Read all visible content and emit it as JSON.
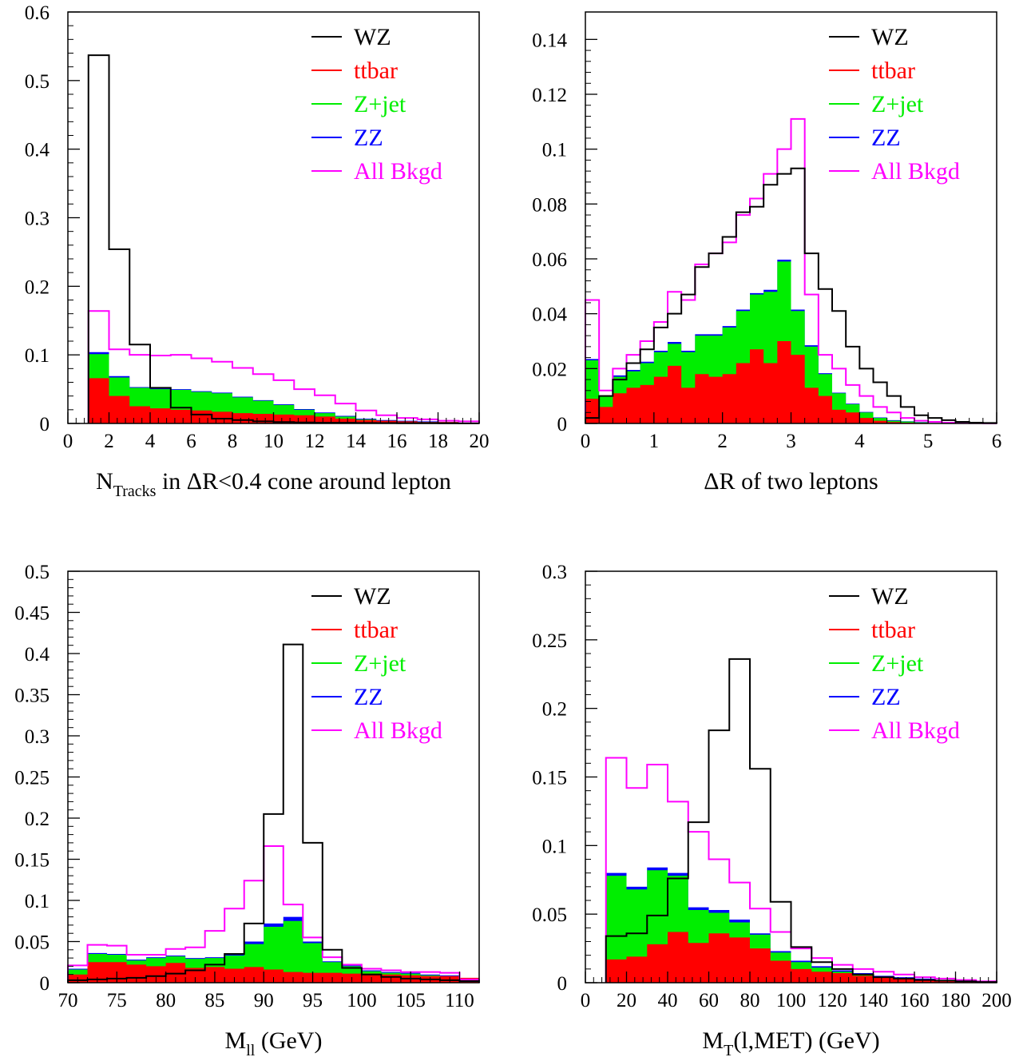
{
  "legend": [
    {
      "name": "WZ",
      "color": "#000000"
    },
    {
      "name": "ttbar",
      "color": "#ff0000"
    },
    {
      "name": "Z+jet",
      "color": "#00ee00"
    },
    {
      "name": "ZZ",
      "color": "#0000ff"
    },
    {
      "name": "All Bkgd",
      "color": "#ff00ff"
    }
  ],
  "chart_data": [
    {
      "type": "bar",
      "xlabel": {
        "main": "N",
        "sub": "Tracks",
        "rest": " in ΔR<0.4 cone around lepton"
      },
      "xlim": [
        0,
        20
      ],
      "ylim": [
        0,
        0.6
      ],
      "xticks": [
        0,
        2,
        4,
        6,
        8,
        10,
        12,
        14,
        16,
        18,
        20
      ],
      "xticklabels": [
        "0",
        "2",
        "4",
        "6",
        "8",
        "10",
        "12",
        "14",
        "16",
        "18",
        "20"
      ],
      "yticks": [
        0,
        0.1,
        0.2,
        0.3,
        0.4,
        0.5,
        0.6
      ],
      "yticklabels": [
        "0",
        "0.1",
        "0.2",
        "0.3",
        "0.4",
        "0.5",
        "0.6"
      ],
      "bin_edges": [
        1,
        2,
        3,
        4,
        5,
        6,
        7,
        8,
        9,
        10,
        11,
        12,
        13,
        14,
        15,
        16,
        17,
        18,
        19,
        20
      ],
      "series": [
        {
          "name": "WZ",
          "values": [
            0.537,
            0.254,
            0.115,
            0.052,
            0.023,
            0.013,
            0.007,
            0.005,
            0.003,
            0.002,
            0.0015,
            0.001,
            0.001,
            0.0008,
            0.0006,
            0.0005,
            0.0004,
            0.0003,
            0.0002
          ]
        },
        {
          "name": "ttbar",
          "values": [
            0.066,
            0.04,
            0.025,
            0.022,
            0.02,
            0.019,
            0.017,
            0.015,
            0.014,
            0.013,
            0.012,
            0.01,
            0.007,
            0.005,
            0.004,
            0.003,
            0.002,
            0.002,
            0.001
          ]
        },
        {
          "name": "Z+jet",
          "values": [
            0.101,
            0.067,
            0.052,
            0.05,
            0.049,
            0.046,
            0.044,
            0.038,
            0.033,
            0.027,
            0.02,
            0.015,
            0.01,
            0.006,
            0.004,
            0.003,
            0.002,
            0.002,
            0.001
          ]
        },
        {
          "name": "ZZ",
          "values": [
            0.104,
            0.069,
            0.053,
            0.051,
            0.05,
            0.047,
            0.045,
            0.039,
            0.034,
            0.028,
            0.021,
            0.016,
            0.011,
            0.007,
            0.005,
            0.004,
            0.003,
            0.002,
            0.001
          ]
        },
        {
          "name": "All Bkgd",
          "values": [
            0.164,
            0.108,
            0.1,
            0.099,
            0.1,
            0.095,
            0.09,
            0.081,
            0.072,
            0.063,
            0.05,
            0.041,
            0.029,
            0.019,
            0.012,
            0.008,
            0.006,
            0.004,
            0.003
          ]
        }
      ]
    },
    {
      "type": "bar",
      "xlabel": {
        "main": "ΔR of two leptons",
        "sub": "",
        "rest": ""
      },
      "xlim": [
        0,
        6
      ],
      "ylim": [
        0,
        0.15
      ],
      "xticks": [
        0,
        1,
        2,
        3,
        4,
        5,
        6
      ],
      "xticklabels": [
        "0",
        "1",
        "2",
        "3",
        "4",
        "5",
        "6"
      ],
      "yticks": [
        0,
        0.02,
        0.04,
        0.06,
        0.08,
        0.1,
        0.12,
        0.14
      ],
      "yticklabels": [
        "0",
        "0.02",
        "0.04",
        "0.06",
        "0.08",
        "0.1",
        "0.12",
        "0.14"
      ],
      "bin_edges": [
        0,
        0.2,
        0.4,
        0.6,
        0.8,
        1.0,
        1.2,
        1.4,
        1.6,
        1.8,
        2.0,
        2.2,
        2.4,
        2.6,
        2.8,
        3.0,
        3.2,
        3.4,
        3.6,
        3.8,
        4.0,
        4.2,
        4.4,
        4.6,
        4.8,
        5.0,
        5.2,
        5.4,
        5.6,
        5.8,
        6.0
      ],
      "series": [
        {
          "name": "WZ",
          "values": [
            0.002,
            0.01,
            0.016,
            0.022,
            0.027,
            0.035,
            0.04,
            0.047,
            0.057,
            0.062,
            0.068,
            0.077,
            0.079,
            0.087,
            0.091,
            0.093,
            0.062,
            0.049,
            0.041,
            0.028,
            0.02,
            0.015,
            0.01,
            0.006,
            0.003,
            0.002,
            0.0012,
            0.0006,
            0.0003,
            0.0002
          ]
        },
        {
          "name": "ttbar",
          "values": [
            0.009,
            0.006,
            0.011,
            0.013,
            0.014,
            0.017,
            0.021,
            0.013,
            0.018,
            0.017,
            0.018,
            0.022,
            0.027,
            0.022,
            0.03,
            0.025,
            0.013,
            0.01,
            0.005,
            0.004,
            0.002,
            0.001,
            0.0005,
            0.0003,
            0.0002,
            0,
            0,
            0,
            0,
            0
          ]
        },
        {
          "name": "Z+jet",
          "values": [
            0.023,
            0.01,
            0.017,
            0.019,
            0.022,
            0.026,
            0.029,
            0.026,
            0.032,
            0.032,
            0.035,
            0.041,
            0.047,
            0.048,
            0.059,
            0.041,
            0.028,
            0.018,
            0.011,
            0.007,
            0.004,
            0.002,
            0.001,
            0.0007,
            0.0004,
            0,
            0,
            0,
            0,
            0
          ]
        },
        {
          "name": "ZZ",
          "values": [
            0.0235,
            0.0102,
            0.0175,
            0.0195,
            0.0225,
            0.0265,
            0.0297,
            0.0265,
            0.0325,
            0.0325,
            0.0355,
            0.0415,
            0.0475,
            0.0487,
            0.0597,
            0.0415,
            0.0285,
            0.0183,
            0.0112,
            0.0072,
            0.0042,
            0.0022,
            0.0012,
            0.0008,
            0.0005,
            0,
            0,
            0,
            0,
            0
          ]
        },
        {
          "name": "All Bkgd",
          "values": [
            0.045,
            0.012,
            0.02,
            0.025,
            0.03,
            0.037,
            0.048,
            0.045,
            0.058,
            0.062,
            0.066,
            0.076,
            0.082,
            0.091,
            0.1,
            0.111,
            0.047,
            0.025,
            0.02,
            0.014,
            0.01,
            0.006,
            0.004,
            0.002,
            0.001,
            0.0006,
            0.0003,
            0.0002,
            0.0001,
            0
          ]
        }
      ]
    },
    {
      "type": "bar",
      "xlabel": {
        "main": "M",
        "sub": "ll",
        "rest": " (GeV)"
      },
      "xlim": [
        70,
        112
      ],
      "ylim": [
        0,
        0.5
      ],
      "xticks": [
        70,
        75,
        80,
        85,
        90,
        95,
        100,
        105,
        110
      ],
      "xticklabels": [
        "70",
        "75",
        "80",
        "85",
        "90",
        "95",
        "100",
        "105",
        "110"
      ],
      "yticks": [
        0,
        0.05,
        0.1,
        0.15,
        0.2,
        0.25,
        0.3,
        0.35,
        0.4,
        0.45,
        0.5
      ],
      "yticklabels": [
        "0",
        "0.05",
        "0.1",
        "0.15",
        "0.2",
        "0.25",
        "0.3",
        "0.35",
        "0.4",
        "0.45",
        "0.5"
      ],
      "bin_edges": [
        70,
        72,
        74,
        76,
        78,
        80,
        82,
        84,
        86,
        88,
        90,
        92,
        94,
        96,
        98,
        100,
        102,
        104,
        106,
        108,
        110,
        112
      ],
      "series": [
        {
          "name": "WZ",
          "values": [
            0.003,
            0.004,
            0.005,
            0.006,
            0.008,
            0.011,
            0.015,
            0.022,
            0.035,
            0.072,
            0.205,
            0.411,
            0.17,
            0.04,
            0.018,
            0.01,
            0.007,
            0.005,
            0.004,
            0.003,
            0.002
          ]
        },
        {
          "name": "ttbar",
          "values": [
            0.01,
            0.025,
            0.025,
            0.022,
            0.02,
            0.024,
            0.018,
            0.019,
            0.017,
            0.019,
            0.016,
            0.013,
            0.012,
            0.012,
            0.011,
            0.011,
            0.01,
            0.009,
            0.008,
            0.008,
            0.006
          ]
        },
        {
          "name": "Z+jet",
          "values": [
            0.016,
            0.035,
            0.034,
            0.027,
            0.03,
            0.032,
            0.029,
            0.03,
            0.033,
            0.047,
            0.068,
            0.075,
            0.048,
            0.025,
            0.02,
            0.014,
            0.012,
            0.011,
            0.009,
            0.008,
            0.003
          ]
        },
        {
          "name": "ZZ",
          "values": [
            0.017,
            0.036,
            0.035,
            0.028,
            0.031,
            0.033,
            0.03,
            0.031,
            0.035,
            0.05,
            0.072,
            0.08,
            0.05,
            0.026,
            0.021,
            0.015,
            0.013,
            0.012,
            0.01,
            0.009,
            0.004
          ]
        },
        {
          "name": "All Bkgd",
          "values": [
            0.021,
            0.046,
            0.045,
            0.034,
            0.034,
            0.041,
            0.043,
            0.063,
            0.09,
            0.124,
            0.166,
            0.095,
            0.055,
            0.031,
            0.022,
            0.017,
            0.015,
            0.013,
            0.013,
            0.012,
            0.004
          ]
        }
      ]
    },
    {
      "type": "bar",
      "xlabel": {
        "main": "M",
        "sub": "T",
        "rest": "(l,MET) (GeV)"
      },
      "xlim": [
        0,
        200
      ],
      "ylim": [
        0,
        0.3
      ],
      "xticks": [
        0,
        20,
        40,
        60,
        80,
        100,
        120,
        140,
        160,
        180,
        200
      ],
      "xticklabels": [
        "0",
        "20",
        "40",
        "60",
        "80",
        "100",
        "120",
        "140",
        "160",
        "180",
        "200"
      ],
      "yticks": [
        0,
        0.05,
        0.1,
        0.15,
        0.2,
        0.25,
        0.3
      ],
      "yticklabels": [
        "0",
        "0.05",
        "0.1",
        "0.15",
        "0.2",
        "0.25",
        "0.3"
      ],
      "bin_edges": [
        10,
        20,
        30,
        40,
        50,
        60,
        70,
        80,
        90,
        100,
        110,
        120,
        130,
        140,
        150,
        160,
        170,
        180,
        190,
        200
      ],
      "series": [
        {
          "name": "WZ",
          "values": [
            0.034,
            0.036,
            0.049,
            0.076,
            0.117,
            0.184,
            0.236,
            0.156,
            0.059,
            0.026,
            0.015,
            0.01,
            0.006,
            0.004,
            0.003,
            0.002,
            0.0015,
            0.001,
            0.0005
          ]
        },
        {
          "name": "ttbar",
          "values": [
            0.017,
            0.019,
            0.028,
            0.037,
            0.029,
            0.036,
            0.033,
            0.025,
            0.016,
            0.01,
            0.008,
            0.007,
            0.005,
            0.004,
            0.003,
            0.002,
            0.002,
            0.001,
            0.001
          ]
        },
        {
          "name": "Z+jet",
          "values": [
            0.078,
            0.068,
            0.082,
            0.078,
            0.053,
            0.051,
            0.044,
            0.035,
            0.022,
            0.015,
            0.011,
            0.008,
            0.006,
            0.004,
            0.003,
            0.002,
            0.002,
            0.001,
            0.001
          ]
        },
        {
          "name": "ZZ",
          "values": [
            0.08,
            0.07,
            0.084,
            0.08,
            0.055,
            0.053,
            0.046,
            0.036,
            0.023,
            0.016,
            0.012,
            0.009,
            0.007,
            0.005,
            0.004,
            0.003,
            0.002,
            0.001,
            0.001
          ]
        },
        {
          "name": "All Bkgd",
          "values": [
            0.164,
            0.142,
            0.159,
            0.132,
            0.11,
            0.09,
            0.073,
            0.054,
            0.037,
            0.025,
            0.018,
            0.013,
            0.01,
            0.008,
            0.006,
            0.004,
            0.003,
            0.002,
            0.001
          ]
        }
      ]
    }
  ]
}
